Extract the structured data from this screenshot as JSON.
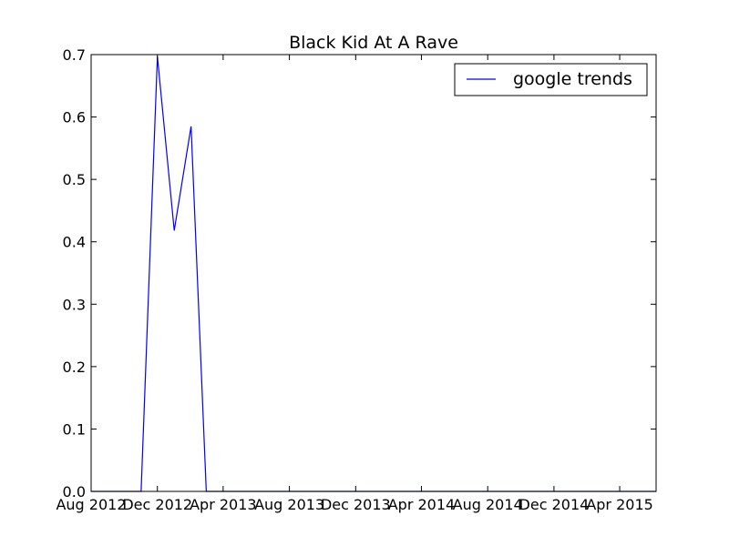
{
  "chart_data": {
    "type": "line",
    "title": "Black Kid At A Rave",
    "xlabel": "",
    "ylabel": "",
    "x_scale": "date",
    "xlim": [
      "2012-08-01",
      "2015-06-07"
    ],
    "ylim": [
      0,
      0.7
    ],
    "x_ticks": [
      {
        "date": "2012-08-01",
        "label": "Aug 2012"
      },
      {
        "date": "2012-12-01",
        "label": "Dec 2012"
      },
      {
        "date": "2013-04-01",
        "label": "Apr 2013"
      },
      {
        "date": "2013-08-01",
        "label": "Aug 2013"
      },
      {
        "date": "2013-12-01",
        "label": "Dec 2013"
      },
      {
        "date": "2014-04-01",
        "label": "Apr 2014"
      },
      {
        "date": "2014-08-01",
        "label": "Aug 2014"
      },
      {
        "date": "2014-12-01",
        "label": "Dec 2014"
      },
      {
        "date": "2015-04-01",
        "label": "Apr 2015"
      }
    ],
    "y_ticks": [
      {
        "value": 0.0,
        "label": "0.0"
      },
      {
        "value": 0.1,
        "label": "0.1"
      },
      {
        "value": 0.2,
        "label": "0.2"
      },
      {
        "value": 0.3,
        "label": "0.3"
      },
      {
        "value": 0.4,
        "label": "0.4"
      },
      {
        "value": 0.5,
        "label": "0.5"
      },
      {
        "value": 0.6,
        "label": "0.6"
      },
      {
        "value": 0.7,
        "label": "0.7"
      }
    ],
    "grid": false,
    "legend": "top-right",
    "series": [
      {
        "name": "google trends",
        "color": "#0000ff",
        "points": [
          {
            "x": "2012-08-01",
            "y": 0.0
          },
          {
            "x": "2012-11-01",
            "y": 0.0
          },
          {
            "x": "2012-12-01",
            "y": 0.697
          },
          {
            "x": "2013-01-01",
            "y": 0.418
          },
          {
            "x": "2013-02-01",
            "y": 0.585
          },
          {
            "x": "2013-03-01",
            "y": 0.0
          },
          {
            "x": "2015-06-07",
            "y": 0.0
          }
        ]
      }
    ]
  }
}
